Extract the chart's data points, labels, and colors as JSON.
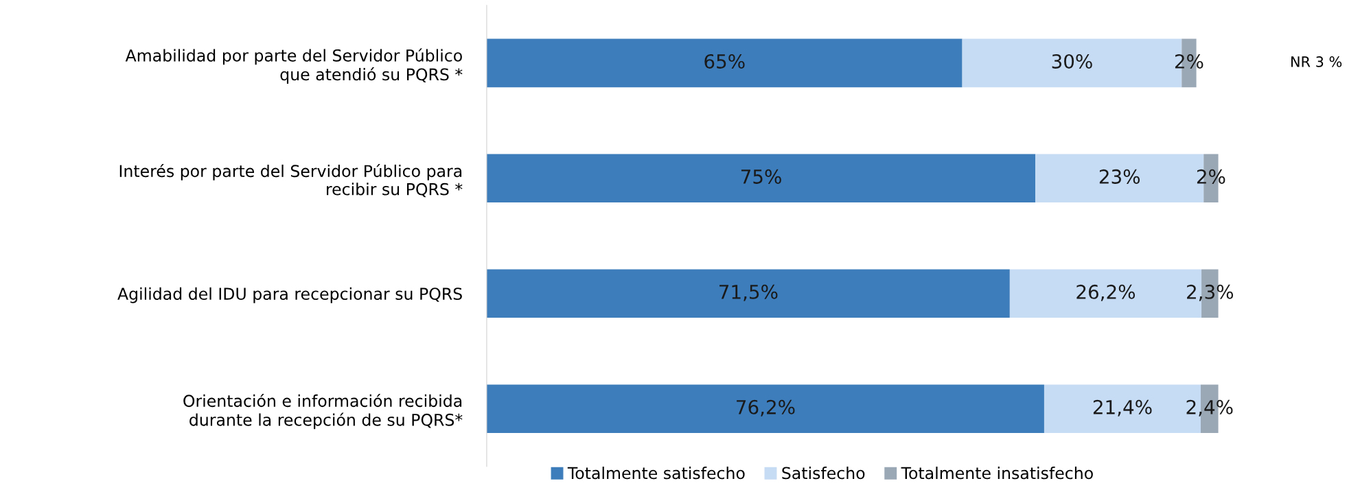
{
  "chart_data": {
    "type": "bar",
    "orientation": "horizontal",
    "stacked": true,
    "categories": [
      "Amabilidad por parte del Servidor Público\nque atendió su PQRS *",
      "Interés por parte del Servidor Público para\nrecibir su PQRS *",
      "Agilidad del IDU para recepcionar su PQRS",
      "Orientación e información recibida\ndurante la recepción de su PQRS*"
    ],
    "series": [
      {
        "name": "Totalmente satisfecho",
        "color": "#3d7dbb",
        "values": [
          65,
          75,
          71.5,
          76.2
        ],
        "value_labels": [
          "65%",
          "75%",
          "71,5%",
          "76,2%"
        ]
      },
      {
        "name": "Satisfecho",
        "color": "#c6dcf4",
        "values": [
          30,
          23,
          26.2,
          21.4
        ],
        "value_labels": [
          "30%",
          "23%",
          "26,2%",
          "21,4%"
        ]
      },
      {
        "name": "Totalmente insatisfecho",
        "color": "#9aa8b6",
        "values": [
          2,
          2,
          2.3,
          2.4
        ],
        "value_labels": [
          "2%",
          "2%",
          "2,3%",
          "2,4%"
        ]
      }
    ],
    "legend": "bottom",
    "grid": false,
    "annotations": [
      "NR 3 %"
    ]
  }
}
